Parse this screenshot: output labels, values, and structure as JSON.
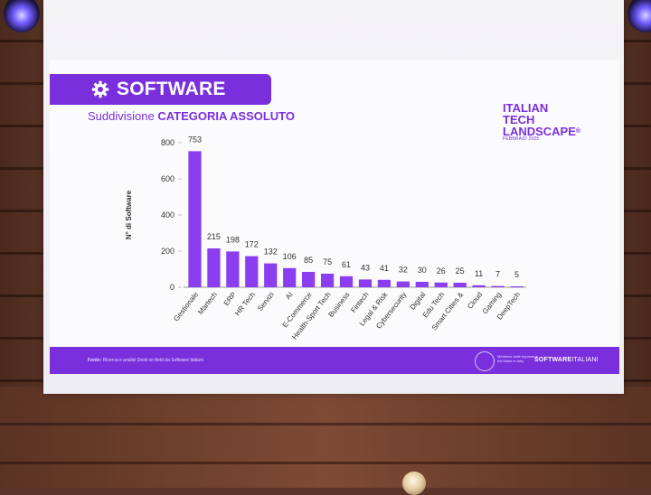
{
  "slide": {
    "title": "SOFTWARE",
    "subtitle_prefix": "Suddivisione ",
    "subtitle_bold": "CATEGORIA ASSOLUTO",
    "brand_line1": "ITALIAN",
    "brand_line2": "TECH",
    "brand_line3": "LANDSCAPE",
    "brand_reg": "®",
    "brand_date": "FEBBRAIO 2025",
    "footer_label": "Fonte:",
    "footer_text": " Ricerca e analisi Desk on-field da Software Italiani",
    "ministry_text": "Ministero delle Imprese e del Made in Italy",
    "software_logo_bold": "SOFTWARE",
    "software_logo_rest": "ITALIANI"
  },
  "colors": {
    "accent": "#7a2fdc",
    "bar": "#8b3df0"
  },
  "chart_data": {
    "type": "bar",
    "categories": [
      "Gestionale",
      "Martech",
      "ERP",
      "HR Tech",
      "Servizi",
      "AI",
      "E-Commerce",
      "Health-Sport Tech",
      "Business",
      "Fintech",
      "Legal & Risk",
      "Cybersecurity",
      "Digital",
      "Edu Tech",
      "Smart Cities &",
      "Cloud",
      "Gaming",
      "DeepTech"
    ],
    "values": [
      753,
      215,
      198,
      172,
      132,
      106,
      85,
      75,
      61,
      43,
      41,
      32,
      30,
      26,
      25,
      11,
      7,
      5
    ],
    "ylabel": "N° di Software",
    "ylim": [
      0,
      800
    ],
    "yticks": [
      0,
      200,
      400,
      600,
      800
    ]
  }
}
